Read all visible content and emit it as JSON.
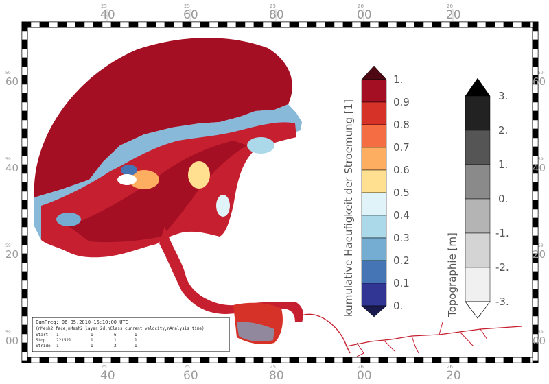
{
  "map": {
    "top_axis": [
      {
        "deg": "40",
        "min": "25"
      },
      {
        "deg": "60",
        "min": "25"
      },
      {
        "deg": "80",
        "min": "25"
      },
      {
        "deg": "00",
        "min": "26"
      },
      {
        "deg": "20",
        "min": "26"
      }
    ],
    "bottom_axis": [
      {
        "deg": "40",
        "min": "25"
      },
      {
        "deg": "60",
        "min": "25"
      },
      {
        "deg": "80",
        "min": "25"
      },
      {
        "deg": "00",
        "min": "26"
      },
      {
        "deg": "20",
        "min": "26"
      }
    ],
    "left_axis": [
      {
        "deg": "60",
        "min": "59"
      },
      {
        "deg": "40",
        "min": "59"
      },
      {
        "deg": "20",
        "min": "59"
      },
      {
        "deg": "00",
        "min": "59"
      }
    ],
    "right_axis": [
      {
        "deg": "60",
        "min": "59"
      },
      {
        "deg": "40",
        "min": "59"
      },
      {
        "deg": "20",
        "min": "59"
      },
      {
        "deg": "00",
        "min": "59"
      }
    ]
  },
  "colorbar_frequency": {
    "title": "kumulative Haeufigkeit der Stroemung [1]",
    "ticks": [
      "1.",
      "0.9",
      "0.8",
      "0.7",
      "0.6",
      "0.5",
      "0.4",
      "0.3",
      "0.2",
      "0.1",
      "0."
    ],
    "colors": [
      "#a50f24",
      "#d73227",
      "#f46d43",
      "#fdae61",
      "#fee090",
      "#e0f3f8",
      "#abd9e9",
      "#74add1",
      "#4575b4",
      "#313695"
    ],
    "over_color": "#4d0814",
    "under_color": "#1a1a4e"
  },
  "colorbar_topography": {
    "title": "Topographie [m]",
    "ticks": [
      "3.",
      "2.",
      "1.",
      "0.",
      "-1.",
      "-2.",
      "-3."
    ],
    "colors": [
      "#222222",
      "#555555",
      "#8a8a8a",
      "#b4b4b4",
      "#d4d4d4",
      "#f0f0f0"
    ],
    "over_color": "#000000",
    "under_color": "#ffffff"
  },
  "info_box": {
    "line1": "CumFreq: 06.05.2010-16:10:00 UTC",
    "line2": "(nMesh2_face,nMesh2_layer_2d,nClass_current_velocity,nAnalysis_time)",
    "rows": [
      {
        "label": "Start",
        "v1": "1",
        "v2": "1",
        "v3": "6",
        "v4": "1"
      },
      {
        "label": "Stop",
        "v1": "221521",
        "v2": "1",
        "v3": "1",
        "v4": "1"
      },
      {
        "label": "Stride",
        "v1": "1",
        "v2": "1",
        "v3": "2",
        "v4": "1"
      }
    ]
  }
}
